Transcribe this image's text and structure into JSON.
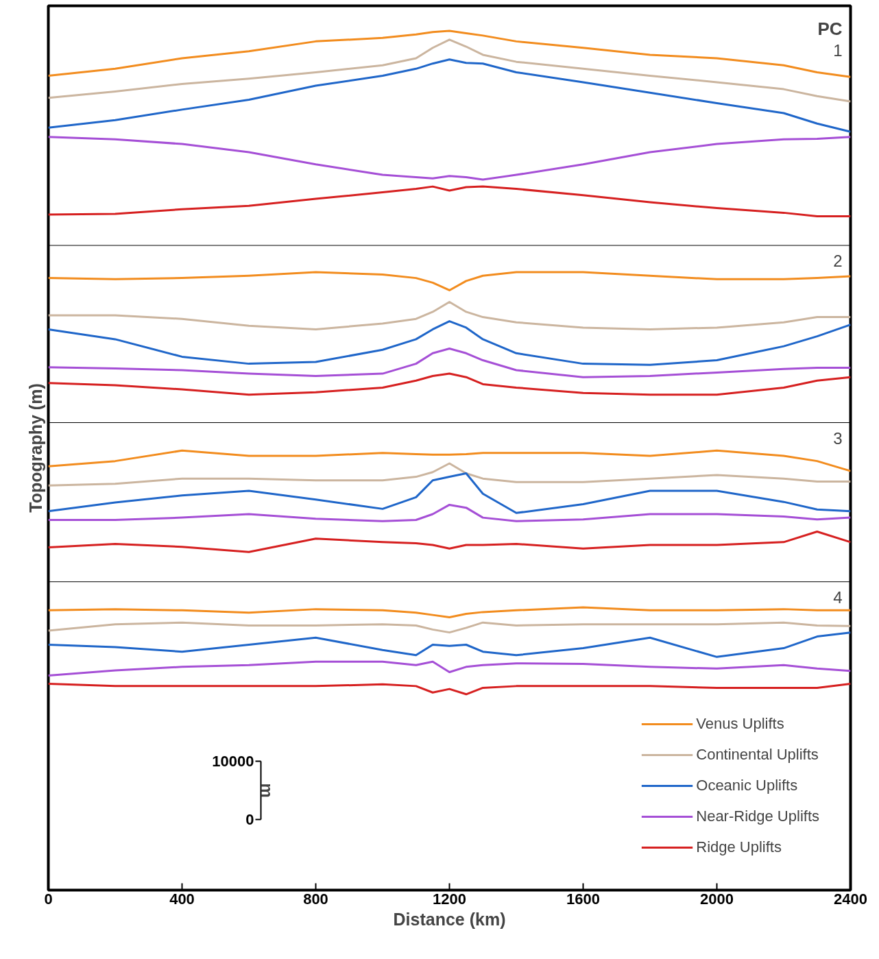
{
  "chart_data": {
    "type": "line",
    "xlabel": "Distance (km)",
    "ylabel": "Topography (m)",
    "x": [
      0,
      200,
      400,
      600,
      800,
      1000,
      1100,
      1150,
      1200,
      1250,
      1300,
      1400,
      1600,
      1800,
      2000,
      2200,
      2300,
      2400
    ],
    "xlim": [
      0,
      2400
    ],
    "xticks": [
      0,
      400,
      800,
      1200,
      1600,
      2000,
      2400
    ],
    "ylim": [
      -12100,
      139600
    ],
    "yticks": [
      0,
      10000
    ],
    "grid": false,
    "legend": "bottom right",
    "line_style": "solid",
    "marker": "none",
    "series": [
      {
        "name": "Venus Uplifts",
        "color": "#f28c1e",
        "values": [
          127600,
          128800,
          130600,
          131800,
          133500,
          134100,
          134700,
          135100,
          135300,
          134900,
          134500,
          133500,
          132400,
          131200,
          130600,
          129400,
          128200,
          127400
        ]
      },
      {
        "name": "Continental Uplifts",
        "color": "#cbb59f",
        "values": [
          123800,
          124900,
          126200,
          127100,
          128200,
          129400,
          130600,
          132400,
          133800,
          132600,
          131200,
          130000,
          128800,
          127600,
          126500,
          125300,
          124100,
          123200
        ]
      },
      {
        "name": "Oceanic Uplifts",
        "color": "#1f66c9",
        "values": [
          118700,
          120000,
          121800,
          123500,
          125900,
          127600,
          128800,
          129700,
          130400,
          129800,
          129700,
          128200,
          126500,
          124700,
          122900,
          121200,
          119400,
          118000
        ]
      },
      {
        "name": "Near-Ridge Uplifts",
        "color": "#a54fd6",
        "values": [
          117100,
          116700,
          115900,
          114500,
          112400,
          110600,
          110200,
          110000,
          110400,
          110200,
          109800,
          110600,
          112400,
          114500,
          115900,
          116700,
          116800,
          117100
        ]
      },
      {
        "name": "Ridge Uplifts",
        "color": "#d62020",
        "values": [
          103800,
          103900,
          104700,
          105300,
          106500,
          107600,
          108200,
          108600,
          107900,
          108500,
          108600,
          108200,
          107100,
          105900,
          104900,
          104100,
          103500,
          103500
        ]
      },
      {
        "color": "#f28c1e",
        "values": [
          92900,
          92700,
          92900,
          93300,
          93900,
          93500,
          92900,
          92100,
          90800,
          92400,
          93300,
          93900,
          93900,
          93300,
          92700,
          92700,
          92900,
          93200
        ]
      },
      {
        "color": "#cbb59f",
        "values": [
          86500,
          86500,
          85900,
          84700,
          84100,
          85100,
          85900,
          87100,
          88800,
          87100,
          86200,
          85300,
          84400,
          84100,
          84400,
          85300,
          86200,
          86200
        ]
      },
      {
        "color": "#1f66c9",
        "values": [
          84100,
          82400,
          79400,
          78200,
          78500,
          80600,
          82400,
          84100,
          85500,
          84400,
          82400,
          80000,
          78200,
          78000,
          78800,
          81200,
          82900,
          84900
        ]
      },
      {
        "color": "#a54fd6",
        "values": [
          77600,
          77400,
          77100,
          76500,
          76100,
          76500,
          78200,
          80000,
          80800,
          80000,
          78800,
          77100,
          75900,
          76100,
          76700,
          77300,
          77500,
          77500
        ]
      },
      {
        "color": "#d62020",
        "values": [
          74900,
          74500,
          73800,
          72900,
          73300,
          74100,
          75300,
          76100,
          76500,
          75900,
          74700,
          74100,
          73200,
          72900,
          72900,
          74100,
          75300,
          75900
        ]
      },
      {
        "color": "#f28c1e",
        "values": [
          60600,
          61500,
          63300,
          62400,
          62400,
          62900,
          62700,
          62600,
          62600,
          62700,
          62900,
          62900,
          62900,
          62400,
          63300,
          62400,
          61500,
          59800
        ]
      },
      {
        "color": "#cbb59f",
        "values": [
          57300,
          57600,
          58500,
          58500,
          58200,
          58200,
          58800,
          59600,
          61100,
          59400,
          58500,
          57900,
          57900,
          58500,
          59100,
          58500,
          58000,
          58000
        ]
      },
      {
        "color": "#1f66c9",
        "values": [
          52900,
          54400,
          55600,
          56400,
          54900,
          53300,
          55300,
          58200,
          58800,
          59400,
          55900,
          52600,
          54100,
          56400,
          56400,
          54500,
          53200,
          52900
        ]
      },
      {
        "color": "#a54fd6",
        "values": [
          51400,
          51400,
          51800,
          52400,
          51600,
          51200,
          51400,
          52400,
          54000,
          53500,
          51800,
          51200,
          51500,
          52400,
          52400,
          52000,
          51500,
          51800
        ]
      },
      {
        "color": "#d62020",
        "values": [
          46700,
          47300,
          46800,
          45900,
          48200,
          47600,
          47400,
          47100,
          46500,
          47100,
          47100,
          47300,
          46500,
          47100,
          47100,
          47600,
          49400,
          47600
        ]
      },
      {
        "color": "#f28c1e",
        "values": [
          35900,
          36100,
          35900,
          35500,
          36100,
          35900,
          35500,
          35100,
          34700,
          35300,
          35600,
          35900,
          36400,
          35900,
          35900,
          36100,
          35900,
          35900
        ]
      },
      {
        "color": "#cbb59f",
        "values": [
          32400,
          33500,
          33800,
          33300,
          33300,
          33500,
          33300,
          32600,
          32100,
          32900,
          33800,
          33300,
          33500,
          33500,
          33500,
          33800,
          33300,
          33200
        ]
      },
      {
        "color": "#1f66c9",
        "values": [
          30000,
          29600,
          28800,
          30000,
          31200,
          29100,
          28200,
          30000,
          29800,
          30000,
          28800,
          28200,
          29400,
          31200,
          27900,
          29400,
          31400,
          32100
        ]
      },
      {
        "color": "#a54fd6",
        "values": [
          24700,
          25600,
          26200,
          26500,
          27100,
          27100,
          26500,
          27100,
          25300,
          26200,
          26500,
          26800,
          26700,
          26200,
          25900,
          26500,
          25900,
          25500
        ]
      },
      {
        "color": "#d62020",
        "values": [
          23300,
          22900,
          22900,
          22900,
          22900,
          23200,
          22900,
          21800,
          22400,
          21500,
          22600,
          22900,
          22900,
          22900,
          22600,
          22600,
          22600,
          23300
        ]
      }
    ],
    "ref_lines": [
      {
        "axis": "y",
        "value": 98500,
        "color": "#000000"
      },
      {
        "axis": "y",
        "value": 68100,
        "color": "#000000"
      },
      {
        "axis": "y",
        "value": 40800,
        "color": "#000000"
      }
    ],
    "annotations": [
      "PC",
      "1",
      "2",
      "3",
      "4",
      "m"
    ]
  }
}
